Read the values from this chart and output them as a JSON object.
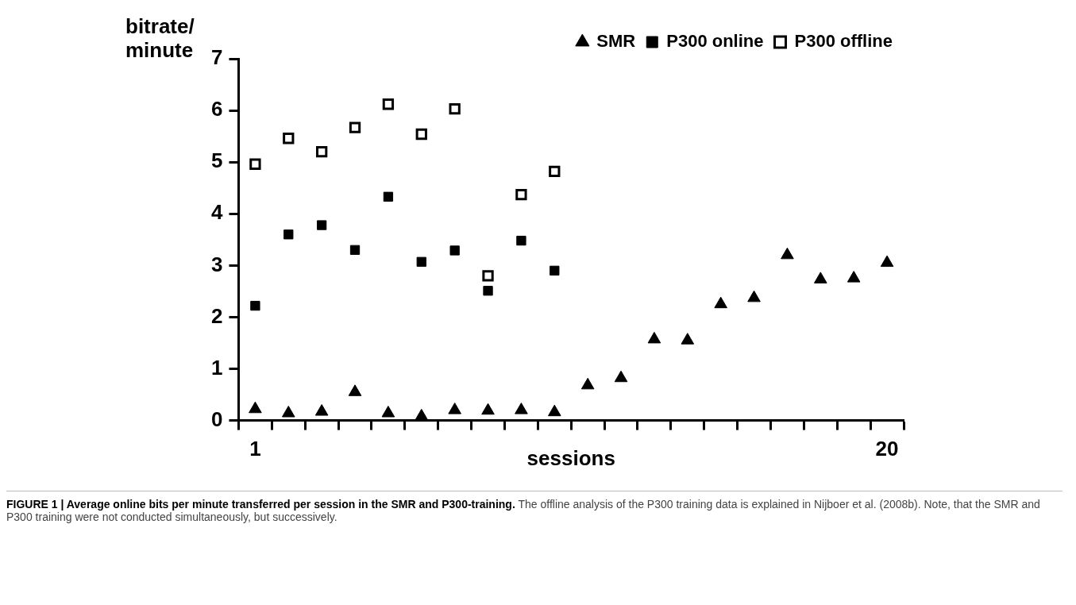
{
  "chart_data": {
    "type": "scatter",
    "title": "FIGURE 1 | Average online bits per minute transferred per session in the SMR and P300-training.",
    "annotations": [
      "The offline analysis of the P300 training data is explained in Nijboer et al. (2008b). Note, that the SMR and P300 training were not conducted simultaneously, but successively."
    ],
    "xlabel": "sessions",
    "ylabel": "bitrate/ minute",
    "categories": [
      "1",
      null,
      null,
      null,
      null,
      null,
      null,
      null,
      null,
      null,
      null,
      null,
      null,
      null,
      null,
      null,
      null,
      null,
      null,
      "20"
    ],
    "ylim": [
      0,
      7
    ],
    "yticks": [
      0,
      1,
      2,
      3,
      4,
      5,
      6,
      7
    ],
    "grid": false,
    "legend": "top right",
    "series": [
      {
        "name": "SMR",
        "color": "#000000",
        "marker": "triangle",
        "values": [
          0.22,
          0.14,
          0.17,
          0.55,
          0.14,
          0.08,
          0.2,
          0.19,
          0.2,
          0.16,
          0.68,
          0.82,
          1.57,
          1.55,
          2.25,
          2.37,
          3.2,
          2.73,
          2.75,
          3.05
        ]
      },
      {
        "name": "P300 online",
        "color": "#000000",
        "marker": "square",
        "values": [
          2.22,
          3.6,
          3.78,
          3.3,
          4.33,
          3.07,
          3.29,
          2.51,
          3.48,
          2.9,
          null,
          null,
          null,
          null,
          null,
          null,
          null,
          null,
          null,
          null
        ]
      },
      {
        "name": "P300 offline",
        "color": "#ffffff",
        "marker": "square",
        "values": [
          4.96,
          5.46,
          5.2,
          5.67,
          6.12,
          5.54,
          6.03,
          2.8,
          4.37,
          4.82,
          null,
          null,
          null,
          null,
          null,
          null,
          null,
          null,
          null,
          null
        ]
      }
    ]
  }
}
